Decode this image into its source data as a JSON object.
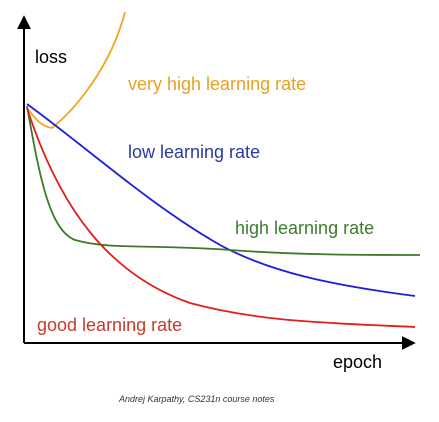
{
  "chart": {
    "y_label": "loss",
    "x_label": "epoch",
    "curves": [
      {
        "label": "very high learning rate"
      },
      {
        "label": "low learning rate"
      },
      {
        "label": "high learning rate"
      },
      {
        "label": "good learning rate"
      }
    ],
    "credit": "Andrej Karpathy, CS231n course notes"
  }
}
